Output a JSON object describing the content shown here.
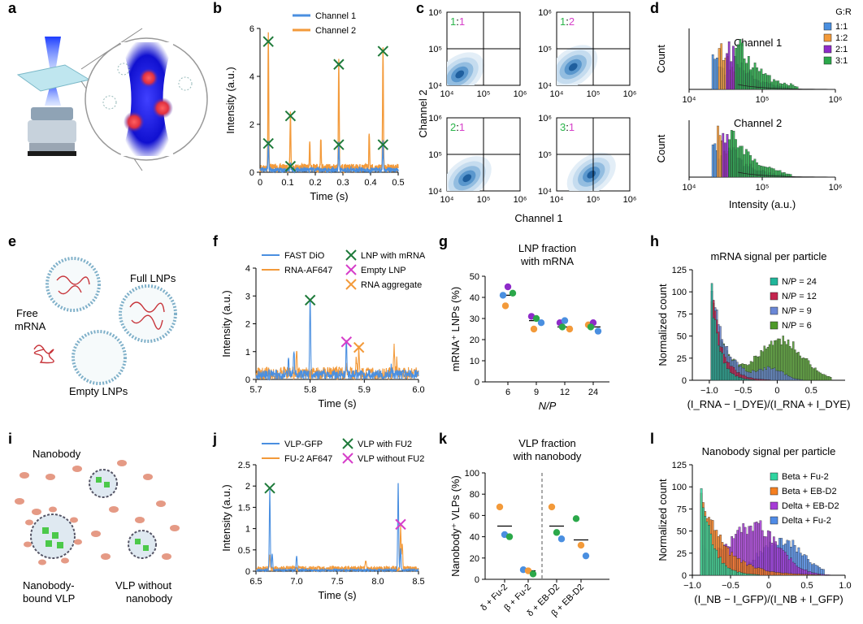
{
  "panels": {
    "a": "a",
    "b": "b",
    "c": "c",
    "d": "d",
    "e": "e",
    "f": "f",
    "g": "g",
    "h": "h",
    "i": "i",
    "j": "j",
    "k": "k",
    "l": "l"
  },
  "illustrations": {
    "e": {
      "full": "Full LNPs",
      "free": "Free\nmRNA",
      "empty": "Empty LNPs"
    },
    "i": {
      "nanobody": "Nanobody",
      "bound": "Nanobody-\nbound VLP",
      "without": "VLP without\nnanobody"
    }
  },
  "colors": {
    "blue": "#4a8fe0",
    "orange": "#f39a3a",
    "green_x": "#1e7a3a",
    "magenta": "#d63ec9",
    "teal": "#1fb59a",
    "purple": "#8e2bc9",
    "crimson": "#c4254f"
  },
  "chart_data": [
    {
      "id": "b",
      "type": "line",
      "xlabel": "Time (s)",
      "ylabel": "Intensity (a.u.)",
      "xlim": [
        0,
        0.5
      ],
      "ylim": [
        0,
        6
      ],
      "xticks": [
        "0",
        "0.1",
        "0.2",
        "0.3",
        "0.4",
        "0.5"
      ],
      "yticks": [
        "0",
        "2",
        "4",
        "6"
      ],
      "series": [
        {
          "name": "Channel 1",
          "color": "#4a8fe0",
          "peaks": [
            [
              0.03,
              1.2
            ],
            [
              0.11,
              0.3
            ],
            [
              0.285,
              1.15
            ],
            [
              0.445,
              1.2
            ]
          ]
        },
        {
          "name": "Channel 2",
          "color": "#f39a3a",
          "peaks": [
            [
              0.03,
              5.5
            ],
            [
              0.11,
              2.3
            ],
            [
              0.285,
              4.5
            ],
            [
              0.445,
              5.0
            ],
            [
              0.18,
              1.0
            ],
            [
              0.22,
              1.2
            ],
            [
              0.395,
              1.4
            ]
          ]
        }
      ],
      "markers": [
        [
          0.03,
          5.45
        ],
        [
          0.03,
          1.2
        ],
        [
          0.11,
          2.35
        ],
        [
          0.11,
          0.25
        ],
        [
          0.285,
          4.5
        ],
        [
          0.285,
          1.15
        ],
        [
          0.445,
          5.05
        ],
        [
          0.445,
          1.15
        ]
      ]
    },
    {
      "id": "c",
      "type": "heatmap",
      "xlabel": "Channel 1",
      "ylabel": "Channel 2",
      "ticks": [
        "10⁴",
        "10⁵",
        "10⁶"
      ],
      "subplots": [
        {
          "ratio_g": "1",
          "ratio_r": "1",
          "center": [
            4.35,
            4.3
          ]
        },
        {
          "ratio_g": "1",
          "ratio_r": "2",
          "center": [
            4.45,
            4.5
          ]
        },
        {
          "ratio_g": "2",
          "ratio_r": "1",
          "center": [
            4.55,
            4.35
          ]
        },
        {
          "ratio_g": "3",
          "ratio_r": "1",
          "center": [
            4.95,
            4.45
          ]
        }
      ]
    },
    {
      "id": "d",
      "type": "bar",
      "legend_title": "G:R",
      "legend": [
        "1:1",
        "1:2",
        "2:1",
        "3:1"
      ],
      "legend_colors": [
        "#4a8fe0",
        "#f39a3a",
        "#8e2bc9",
        "#2ba84a"
      ],
      "xlabel": "Intensity (a.u.)",
      "ylabel": "Count",
      "xticks": [
        "10⁴",
        "10⁵",
        "10⁶"
      ],
      "subtitles": [
        "Channel 1",
        "Channel 2"
      ]
    },
    {
      "id": "f",
      "type": "line",
      "xlabel": "Time (s)",
      "ylabel": "Intensity (a.u.)",
      "xlim": [
        5.7,
        6.0
      ],
      "ylim": [
        0,
        4
      ],
      "xticks": [
        "5.7",
        "5.8",
        "5.9",
        "6.0"
      ],
      "yticks": [
        "0",
        "1",
        "2",
        "3",
        "4"
      ],
      "series": [
        {
          "name": "FAST DiO",
          "color": "#4a8fe0"
        },
        {
          "name": "RNA-AF647",
          "color": "#f39a3a"
        }
      ],
      "marker_legend": [
        {
          "label": "LNP with mRNA",
          "color": "#1e7a3a"
        },
        {
          "label": "Empty LNP",
          "color": "#d63ec9"
        },
        {
          "label": "RNA aggregate",
          "color": "#f39a3a"
        }
      ],
      "markers": [
        [
          5.8,
          2.85,
          "#1e7a3a"
        ],
        [
          5.867,
          1.35,
          "#d63ec9"
        ],
        [
          5.89,
          1.15,
          "#f39a3a"
        ]
      ]
    },
    {
      "id": "g",
      "type": "scatter",
      "title_line1": "LNP fraction",
      "title_line2": "with mRNA",
      "ylabel": "mRNA⁺ LNPs (%)",
      "xlabel": "N/P",
      "categories": [
        "6",
        "9",
        "12",
        "24"
      ],
      "ylim": [
        0,
        50
      ],
      "yticks": [
        "0",
        "10",
        "20",
        "30",
        "40",
        "50"
      ],
      "points": [
        [
          [
            41,
            "#4a8fe0"
          ],
          [
            45,
            "#8e2bc9"
          ],
          [
            42,
            "#2ba84a"
          ],
          [
            36,
            "#f39a3a"
          ]
        ],
        [
          [
            31,
            "#8e2bc9"
          ],
          [
            30,
            "#2ba84a"
          ],
          [
            28,
            "#4a8fe0"
          ],
          [
            25,
            "#f39a3a"
          ]
        ],
        [
          [
            28,
            "#8e2bc9"
          ],
          [
            29,
            "#4a8fe0"
          ],
          [
            25,
            "#f39a3a"
          ],
          [
            26,
            "#2ba84a"
          ]
        ],
        [
          [
            27,
            "#f39a3a"
          ],
          [
            28,
            "#8e2bc9"
          ],
          [
            24,
            "#4a8fe0"
          ],
          [
            26,
            "#2ba84a"
          ]
        ]
      ],
      "means": [
        41,
        29,
        26,
        26
      ]
    },
    {
      "id": "h",
      "type": "bar",
      "title": "mRNA signal per particle",
      "ylabel": "Normalized count",
      "xlabel": "(I_RNA − I_DYE)/(I_RNA + I_DYE)",
      "xlim": [
        -1.25,
        1.0
      ],
      "ylim": [
        0,
        125
      ],
      "xticks": [
        "−1.0",
        "−0.5",
        "0",
        "0.5"
      ],
      "yticks": [
        "0",
        "25",
        "50",
        "75",
        "100",
        "125"
      ],
      "legend": [
        {
          "label": "N/P = 24",
          "color": "#1fb59a"
        },
        {
          "label": "N/P = 12",
          "color": "#c4254f"
        },
        {
          "label": "N/P = 9",
          "color": "#6a87d6"
        },
        {
          "label": "N/P = 6",
          "color": "#4e9a2a"
        }
      ]
    },
    {
      "id": "j",
      "type": "line",
      "xlabel": "Time (s)",
      "ylabel": "Intensity (a.u.)",
      "xlim": [
        6.5,
        8.5
      ],
      "ylim": [
        0,
        2.5
      ],
      "xticks": [
        "6.5",
        "7.0",
        "7.5",
        "8.0",
        "8.5"
      ],
      "yticks": [
        "0",
        "0.5",
        "1",
        "1.5",
        "2",
        "2.5"
      ],
      "series": [
        {
          "name": "VLP-GFP",
          "color": "#4a8fe0"
        },
        {
          "name": "FU-2 AF647",
          "color": "#f39a3a"
        }
      ],
      "marker_legend": [
        {
          "label": "VLP with FU2",
          "color": "#1e7a3a"
        },
        {
          "label": "VLP without FU2",
          "color": "#d63ec9"
        }
      ],
      "markers": [
        [
          6.67,
          1.95,
          "#1e7a3a"
        ],
        [
          8.28,
          1.1,
          "#d63ec9"
        ]
      ]
    },
    {
      "id": "k",
      "type": "scatter",
      "title_line1": "VLP fraction",
      "title_line2": "with nanobody",
      "ylabel": "Nanobody⁺ VLPs (%)",
      "categories": [
        "δ + Fu-2",
        "β + Fu-2",
        "δ + EB-D2",
        "β + EB-D2"
      ],
      "ylim": [
        0,
        100
      ],
      "yticks": [
        "0",
        "20",
        "40",
        "60",
        "80",
        "100"
      ],
      "points": [
        [
          [
            68,
            "#f39a3a"
          ],
          [
            42,
            "#4a8fe0"
          ],
          [
            40,
            "#2ba84a"
          ]
        ],
        [
          [
            9,
            "#4a8fe0"
          ],
          [
            8,
            "#f39a3a"
          ],
          [
            5,
            "#2ba84a"
          ]
        ],
        [
          [
            68,
            "#f39a3a"
          ],
          [
            44,
            "#2ba84a"
          ],
          [
            38,
            "#4a8fe0"
          ]
        ],
        [
          [
            57,
            "#2ba84a"
          ],
          [
            32,
            "#f39a3a"
          ],
          [
            22,
            "#4a8fe0"
          ]
        ]
      ],
      "means": [
        50,
        8,
        50,
        37
      ]
    },
    {
      "id": "l",
      "type": "bar",
      "title": "Nanobody signal per particle",
      "ylabel": "Normalized count",
      "xlabel": "(I_NB − I_GFP)/(I_NB + I_GFP)",
      "xlim": [
        -1.0,
        1.0
      ],
      "ylim": [
        0,
        125
      ],
      "xticks": [
        "−1.0",
        "−0.5",
        "0",
        "0.5",
        "1.0"
      ],
      "yticks": [
        "0",
        "25",
        "50",
        "75",
        "100",
        "125"
      ],
      "legend": [
        {
          "label": "Beta + Fu-2",
          "color": "#2fd5a0"
        },
        {
          "label": "Beta + EB-D2",
          "color": "#f57f20"
        },
        {
          "label": "Delta + EB-D2",
          "color": "#a63bd6"
        },
        {
          "label": "Delta + Fu-2",
          "color": "#4f8be6"
        }
      ]
    }
  ]
}
